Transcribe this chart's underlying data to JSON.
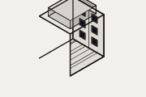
{
  "bg_color": "#f2f0ec",
  "line_color": "#1a1a1a",
  "face_top": "#e8e5df",
  "face_front": "#dedad4",
  "face_right": "#e0ddd7",
  "face_latch_top": "#e2dfd9",
  "face_latch_front": "#d8d5cf",
  "face_dark": "#2a2828",
  "lw": 0.9,
  "lw_thin": 0.5
}
